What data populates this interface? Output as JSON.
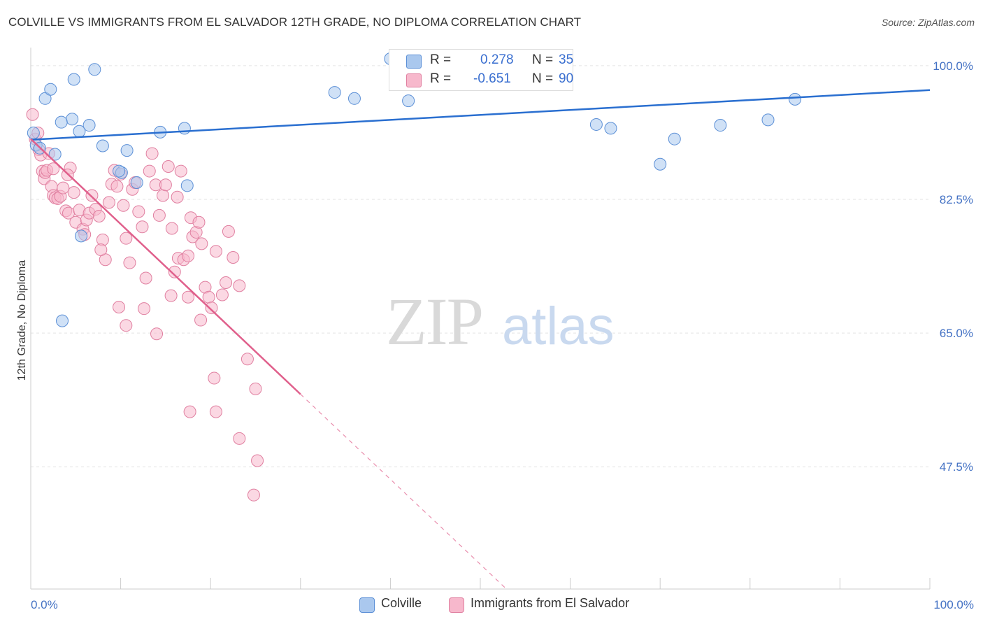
{
  "title": "COLVILLE VS IMMIGRANTS FROM EL SALVADOR 12TH GRADE, NO DIPLOMA CORRELATION CHART",
  "source": "Source: ZipAtlas.com",
  "watermark": {
    "zip": "ZIP",
    "atlas": "atlas"
  },
  "legend": {
    "rows": [
      {
        "r_label": "R =",
        "r_value": "0.278",
        "n_label": "N =",
        "n_value": "35"
      },
      {
        "r_label": "R =",
        "r_value": "-0.651",
        "n_label": "N =",
        "n_value": "90"
      }
    ]
  },
  "bottom_legend": {
    "series1": "Colville",
    "series2": "Immigrants from El Salvador"
  },
  "colors": {
    "blue_fill": "#aac8ee",
    "blue_stroke": "#5b8fd6",
    "blue_line": "#2a6fd0",
    "pink_fill": "#f7b8cc",
    "pink_stroke": "#e07fa0",
    "pink_line": "#e0608c",
    "tick_text": "#4472c4",
    "grid": "#e3e3e3"
  },
  "chart_data": {
    "type": "scatter",
    "title": "COLVILLE VS IMMIGRANTS FROM EL SALVADOR 12TH GRADE, NO DIPLOMA CORRELATION CHART",
    "xlabel": "",
    "ylabel": "12th Grade, No Diploma",
    "xlim": [
      0,
      100
    ],
    "ylim": [
      31.5,
      102
    ],
    "x_tick_labels": [
      "0.0%",
      "100.0%"
    ],
    "y_ticks": [
      100.0,
      82.5,
      65.0,
      47.5
    ],
    "y_tick_labels": [
      "100.0%",
      "82.5%",
      "65.0%",
      "47.5%"
    ],
    "grid": true,
    "legend_position": "top-center",
    "series": [
      {
        "name": "Colville",
        "color": "#aac8ee",
        "trend": {
          "x": [
            0,
            100
          ],
          "y": [
            90.3,
            96.8
          ],
          "dashed_x": []
        },
        "points": [
          [
            0.3,
            91.2
          ],
          [
            0.6,
            89.6
          ],
          [
            1.6,
            95.7
          ],
          [
            2.2,
            96.9
          ],
          [
            4.6,
            93.0
          ],
          [
            4.8,
            98.2
          ],
          [
            3.4,
            92.6
          ],
          [
            5.4,
            91.4
          ],
          [
            6.5,
            92.2
          ],
          [
            7.1,
            99.5
          ],
          [
            8.0,
            89.5
          ],
          [
            10.1,
            86.0
          ],
          [
            10.7,
            88.9
          ],
          [
            11.8,
            84.7
          ],
          [
            14.4,
            91.3
          ],
          [
            17.1,
            91.8
          ],
          [
            17.4,
            84.3
          ],
          [
            2.7,
            88.4
          ],
          [
            3.5,
            66.6
          ],
          [
            5.6,
            77.7
          ],
          [
            9.8,
            86.2
          ],
          [
            33.8,
            96.5
          ],
          [
            36.0,
            95.7
          ],
          [
            42.0,
            95.4
          ],
          [
            45.7,
            100.9
          ],
          [
            53.1,
            100.9
          ],
          [
            62.9,
            92.3
          ],
          [
            64.5,
            91.8
          ],
          [
            70.0,
            87.1
          ],
          [
            71.6,
            90.4
          ],
          [
            76.7,
            92.2
          ],
          [
            82.0,
            92.9
          ],
          [
            85.0,
            95.6
          ],
          [
            40.0,
            100.9
          ],
          [
            1.0,
            89.2
          ]
        ]
      },
      {
        "name": "Immigrants from El Salvador",
        "color": "#f7b8cc",
        "trend": {
          "x": [
            0,
            30
          ],
          "y": [
            90.4,
            57.0
          ],
          "dashed_x": [
            30,
            53
          ]
        },
        "points": [
          [
            0.2,
            93.6
          ],
          [
            0.5,
            90.4
          ],
          [
            0.8,
            91.2
          ],
          [
            0.9,
            89.0
          ],
          [
            1.1,
            88.3
          ],
          [
            1.3,
            86.2
          ],
          [
            1.5,
            85.2
          ],
          [
            1.6,
            86.0
          ],
          [
            1.8,
            86.3
          ],
          [
            2.0,
            88.5
          ],
          [
            2.3,
            84.2
          ],
          [
            2.5,
            83.0
          ],
          [
            2.7,
            82.7
          ],
          [
            3.0,
            82.6
          ],
          [
            3.3,
            82.9
          ],
          [
            3.6,
            84.0
          ],
          [
            3.9,
            81.0
          ],
          [
            4.2,
            80.7
          ],
          [
            4.4,
            86.6
          ],
          [
            4.8,
            83.4
          ],
          [
            5.0,
            79.5
          ],
          [
            5.4,
            81.1
          ],
          [
            5.8,
            78.6
          ],
          [
            6.2,
            79.8
          ],
          [
            6.5,
            80.7
          ],
          [
            6.8,
            83.0
          ],
          [
            7.2,
            81.2
          ],
          [
            7.6,
            80.3
          ],
          [
            8.0,
            77.2
          ],
          [
            8.3,
            74.6
          ],
          [
            8.7,
            82.1
          ],
          [
            9.0,
            84.5
          ],
          [
            9.3,
            86.3
          ],
          [
            9.6,
            84.2
          ],
          [
            10.0,
            85.8
          ],
          [
            10.3,
            81.7
          ],
          [
            10.6,
            77.4
          ],
          [
            11.0,
            74.2
          ],
          [
            11.3,
            83.8
          ],
          [
            11.6,
            84.7
          ],
          [
            12.0,
            80.9
          ],
          [
            12.4,
            78.9
          ],
          [
            12.8,
            72.2
          ],
          [
            13.2,
            86.2
          ],
          [
            13.5,
            88.5
          ],
          [
            13.9,
            84.4
          ],
          [
            14.3,
            80.4
          ],
          [
            14.7,
            83.0
          ],
          [
            15.0,
            84.4
          ],
          [
            15.3,
            86.8
          ],
          [
            15.7,
            78.7
          ],
          [
            16.0,
            73.0
          ],
          [
            16.4,
            74.8
          ],
          [
            16.7,
            86.2
          ],
          [
            17.0,
            74.6
          ],
          [
            17.5,
            75.1
          ],
          [
            17.8,
            80.1
          ],
          [
            18.0,
            77.6
          ],
          [
            18.4,
            78.2
          ],
          [
            18.7,
            79.5
          ],
          [
            19.0,
            76.7
          ],
          [
            19.4,
            71.0
          ],
          [
            19.8,
            69.7
          ],
          [
            20.1,
            68.3
          ],
          [
            20.6,
            75.7
          ],
          [
            21.3,
            70.0
          ],
          [
            21.7,
            71.6
          ],
          [
            22.0,
            78.3
          ],
          [
            22.5,
            74.9
          ],
          [
            23.2,
            71.2
          ],
          [
            24.1,
            61.6
          ],
          [
            25.0,
            57.7
          ],
          [
            2.5,
            86.5
          ],
          [
            4.1,
            85.7
          ],
          [
            6.0,
            77.9
          ],
          [
            7.8,
            75.9
          ],
          [
            9.8,
            68.4
          ],
          [
            10.6,
            66.0
          ],
          [
            12.6,
            68.2
          ],
          [
            14.0,
            64.9
          ],
          [
            15.6,
            69.9
          ],
          [
            16.3,
            82.8
          ],
          [
            17.5,
            69.7
          ],
          [
            18.9,
            66.7
          ],
          [
            20.4,
            59.1
          ],
          [
            20.6,
            54.7
          ],
          [
            17.7,
            54.7
          ],
          [
            23.2,
            51.2
          ],
          [
            25.2,
            48.3
          ],
          [
            24.8,
            43.8
          ]
        ]
      }
    ]
  }
}
